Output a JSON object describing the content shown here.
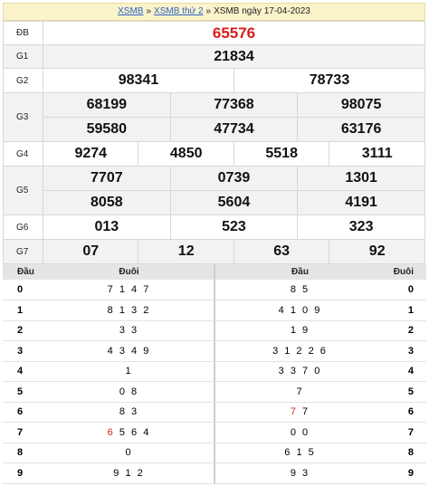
{
  "breadcrumb": {
    "link1": "XSMB",
    "sep1": "»",
    "link2": "XSMB thứ 2",
    "sep2": "»",
    "current": "XSMB ngày 17-04-2023"
  },
  "results": {
    "db": {
      "label": "ĐB",
      "numbers": [
        "65576"
      ]
    },
    "g1": {
      "label": "G1",
      "numbers": [
        "21834"
      ]
    },
    "g2": {
      "label": "G2",
      "numbers": [
        "98341",
        "78733"
      ]
    },
    "g3": {
      "label": "G3",
      "numbers": [
        "68199",
        "77368",
        "98075",
        "59580",
        "47734",
        "63176"
      ]
    },
    "g4": {
      "label": "G4",
      "numbers": [
        "9274",
        "4850",
        "5518",
        "3111"
      ]
    },
    "g5": {
      "label": "G5",
      "numbers": [
        "7707",
        "0739",
        "1301",
        "8058",
        "5604",
        "4191"
      ]
    },
    "g6": {
      "label": "G6",
      "numbers": [
        "013",
        "523",
        "323"
      ]
    },
    "g7": {
      "label": "G7",
      "numbers": [
        "07",
        "12",
        "63",
        "92"
      ]
    }
  },
  "loto_left": {
    "header": {
      "dau": "Đầu",
      "duoi": "Đuôi"
    },
    "rows": [
      {
        "key": "0",
        "value": "7 1 4 7"
      },
      {
        "key": "1",
        "value": "8 1 3 2"
      },
      {
        "key": "2",
        "value": "3 3"
      },
      {
        "key": "3",
        "value": "4 3 4 9"
      },
      {
        "key": "4",
        "value": "1"
      },
      {
        "key": "5",
        "value": "0 8"
      },
      {
        "key": "6",
        "value": "8 3"
      },
      {
        "key": "7",
        "highlight": "6",
        "value": " 5 6 4"
      },
      {
        "key": "8",
        "value": "0"
      },
      {
        "key": "9",
        "value": "9 1 2"
      }
    ]
  },
  "loto_right": {
    "header": {
      "dau": "Đầu",
      "duoi": "Đuôi"
    },
    "rows": [
      {
        "key": "0",
        "value": "8 5"
      },
      {
        "key": "1",
        "value": "4 1 0 9"
      },
      {
        "key": "2",
        "value": "1 9"
      },
      {
        "key": "3",
        "value": "3 1 2 2 6"
      },
      {
        "key": "4",
        "value": "3 3 7 0"
      },
      {
        "key": "5",
        "value": "7"
      },
      {
        "key": "6",
        "highlight": "7",
        "value": " 7"
      },
      {
        "key": "7",
        "value": "0 0"
      },
      {
        "key": "8",
        "value": "6 1 5"
      },
      {
        "key": "9",
        "value": "9 3"
      }
    ]
  }
}
